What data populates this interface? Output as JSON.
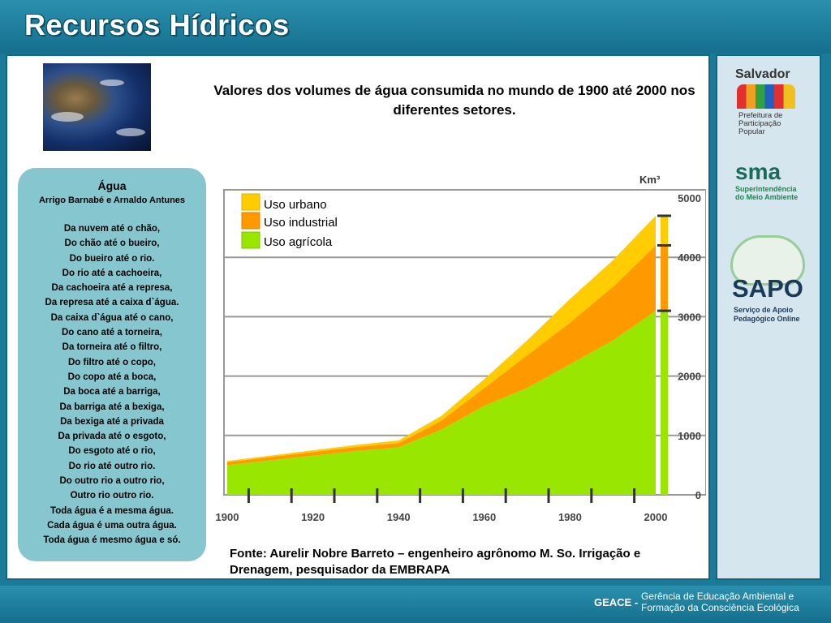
{
  "header": {
    "title": "Recursos Hídricos"
  },
  "poem": {
    "title": "Água",
    "author": "Arrigo Barnabé e Arnaldo Antunes",
    "lines": [
      "Da nuvem até o chão,",
      "Do chão até o bueiro,",
      "Do bueiro até o rio.",
      "Do rio até a cachoeira,",
      "Da cachoeira até a represa,",
      "Da represa até a caixa d`água.",
      "Da caixa d`água até o cano,",
      "Do cano até a torneira,",
      "Da torneira até o filtro,",
      "Do filtro até o copo,",
      "Do copo até a boca,",
      "Da boca até a barriga,",
      "Da barriga até a bexiga,",
      "Da bexiga até a privada",
      "Da privada até o esgoto,",
      "Do esgoto até o rio,",
      "Do rio até outro rio.",
      "Do outro rio a outro rio,",
      "Outro rio outro rio.",
      "Toda água é a mesma água.",
      "Cada água é uma outra água.",
      "Toda água é mesmo água e só."
    ]
  },
  "chart_title": "Valores dos volumes de água consumida no mundo de 1900 até 2000 nos diferentes setores.",
  "source": "Fonte: Aurelir Nobre Barreto – engenheiro agrônomo M. So. Irrigação e Drenagem, pesquisador da EMBRAPA",
  "colors": {
    "urbano": "#ffcc00",
    "industrial": "#ff9900",
    "agricola": "#99e600",
    "header": "#1a7a97"
  },
  "chart_data": {
    "type": "area",
    "title": "Valores dos volumes de água consumida no mundo de 1900 até 2000 nos diferentes setores.",
    "ylabel": "Km³",
    "ylim": [
      0,
      5000
    ],
    "xlim": [
      1900,
      2000
    ],
    "yticks": [
      "0",
      "1000",
      "2000",
      "3000",
      "4000",
      "5000"
    ],
    "xticks": [
      "1900",
      "1920",
      "1940",
      "1960",
      "1980",
      "2000"
    ],
    "legend": [
      "Uso urbano",
      "Uso industrial",
      "Uso agrícola"
    ],
    "x": [
      1900,
      1910,
      1920,
      1930,
      1940,
      1950,
      1960,
      1970,
      1980,
      1990,
      2000
    ],
    "series": [
      {
        "name": "Uso agrícola",
        "values": [
          500,
          580,
          660,
          740,
          800,
          1100,
          1500,
          1800,
          2200,
          2600,
          3100
        ]
      },
      {
        "name": "Uso industrial",
        "values": [
          50,
          55,
          60,
          65,
          70,
          150,
          300,
          550,
          700,
          900,
          1100
        ]
      },
      {
        "name": "Uso urbano",
        "values": [
          20,
          25,
          30,
          35,
          45,
          80,
          150,
          250,
          400,
          450,
          500
        ]
      }
    ]
  },
  "side": {
    "salvador": "Salvador",
    "prefeitura": "Prefeitura de Participação Popular",
    "sma": "sma",
    "sma_desc": "Superintendência do Meio Ambiente",
    "sapo": "SAPO",
    "sapo_desc": "Serviço de Apoio Pedagógico Online"
  },
  "footer": {
    "geace": "GEACE -",
    "desc1": "Gerência de Educação Ambiental e",
    "desc2": "Formação da Consciência Ecológica"
  }
}
